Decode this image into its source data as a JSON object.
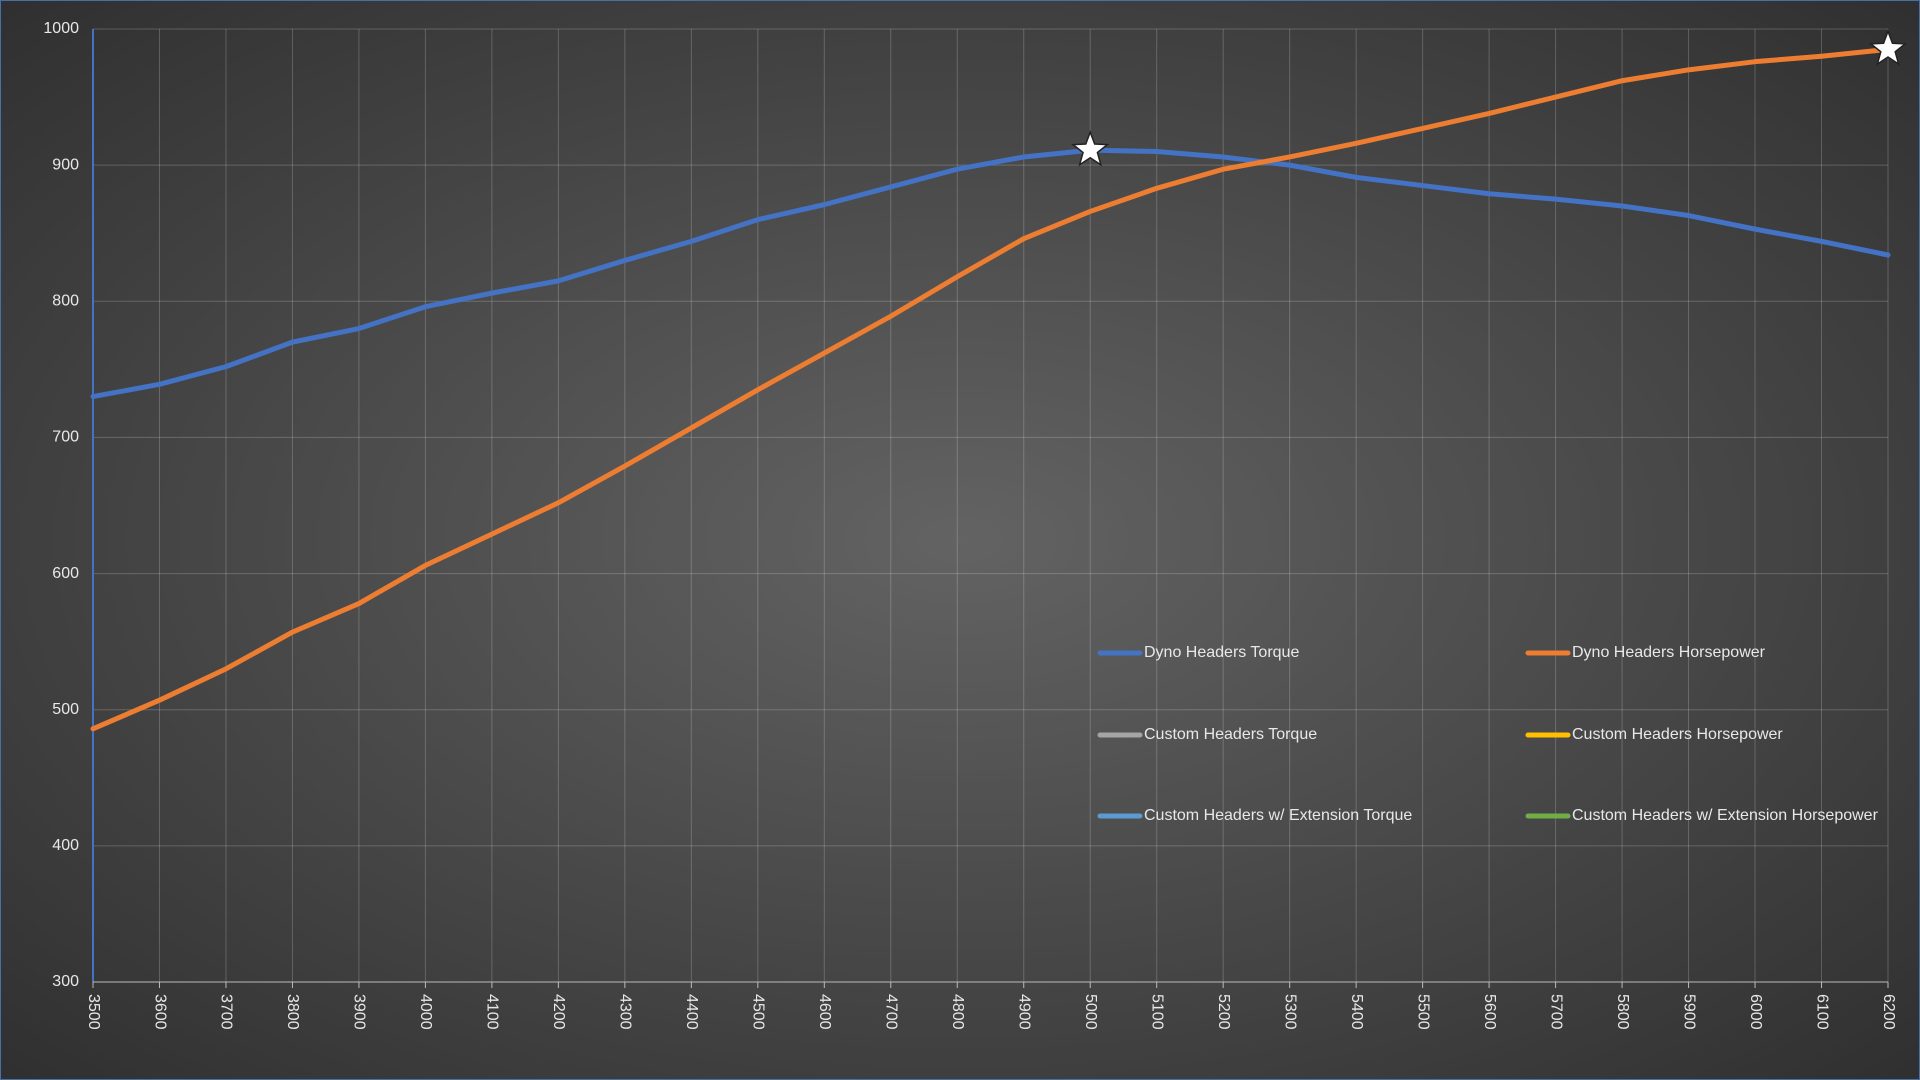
{
  "chart_data": {
    "type": "line",
    "x": [
      3500,
      3600,
      3700,
      3800,
      3900,
      4000,
      4100,
      4200,
      4300,
      4400,
      4500,
      4600,
      4700,
      4800,
      4900,
      5000,
      5100,
      5200,
      5300,
      5400,
      5500,
      5600,
      5700,
      5800,
      5900,
      6000,
      6100,
      6200
    ],
    "xlim": [
      3500,
      6200
    ],
    "xticks": [
      3500,
      3600,
      3700,
      3800,
      3900,
      4000,
      4100,
      4200,
      4300,
      4400,
      4500,
      4600,
      4700,
      4800,
      4900,
      5000,
      5100,
      5200,
      5300,
      5400,
      5500,
      5600,
      5700,
      5800,
      5900,
      6000,
      6100,
      6200
    ],
    "ylim": [
      300,
      1000
    ],
    "yticks": [
      300,
      400,
      500,
      600,
      700,
      800,
      900,
      1000
    ],
    "grid": true,
    "series": [
      {
        "name": "Dyno Headers Torque",
        "color": "#4472c4",
        "values": [
          730,
          739,
          752,
          770,
          780,
          796,
          806,
          815,
          830,
          844,
          860,
          871,
          884,
          897,
          906,
          911,
          910,
          906,
          900,
          891,
          885,
          879,
          875,
          870,
          863,
          853,
          844,
          834
        ]
      },
      {
        "name": "Dyno Headers Horsepower",
        "color": "#ed7d31",
        "values": [
          486,
          507,
          530,
          557,
          578,
          606,
          629,
          652,
          679,
          707,
          735,
          762,
          789,
          818,
          846,
          866,
          883,
          897,
          906,
          916,
          927,
          938,
          950,
          962,
          970,
          976,
          980,
          985
        ]
      },
      {
        "name": "Custom Headers Torque",
        "color": "#a5a5a5",
        "values": [
          null,
          null,
          null,
          null,
          null,
          null,
          null,
          null,
          null,
          null,
          null,
          null,
          null,
          null,
          null,
          null,
          null,
          null,
          null,
          null,
          null,
          null,
          null,
          null,
          null,
          null,
          null,
          null
        ]
      },
      {
        "name": "Custom Headers Horsepower",
        "color": "#ffc000",
        "values": [
          null,
          null,
          null,
          null,
          null,
          null,
          null,
          null,
          null,
          null,
          null,
          null,
          null,
          null,
          null,
          null,
          null,
          null,
          null,
          null,
          null,
          null,
          null,
          null,
          null,
          null,
          null,
          null
        ]
      },
      {
        "name": "Custom Headers w/ Extension Torque",
        "color": "#5b9bd5",
        "values": [
          null,
          null,
          null,
          null,
          null,
          null,
          null,
          null,
          null,
          null,
          null,
          null,
          null,
          null,
          null,
          null,
          null,
          null,
          null,
          null,
          null,
          null,
          null,
          null,
          null,
          null,
          null,
          null
        ]
      },
      {
        "name": "Custom Headers w/ Extension Horsepower",
        "color": "#70ad47",
        "values": [
          null,
          null,
          null,
          null,
          null,
          null,
          null,
          null,
          null,
          null,
          null,
          null,
          null,
          null,
          null,
          null,
          null,
          null,
          null,
          null,
          null,
          null,
          null,
          null,
          null,
          null,
          null,
          null
        ]
      }
    ]
  }
}
